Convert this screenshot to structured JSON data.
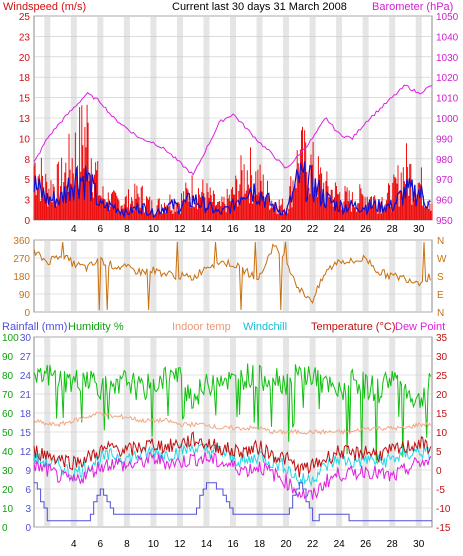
{
  "header": {
    "left": "Windspeed (m/s)",
    "center": "Current last 30 days 31 March 2008",
    "right": "Barometer (hPa)"
  },
  "legend": {
    "rainfall": "Rainfall (mm)",
    "humidity": "Humidity %",
    "indoor": "Indoor temp",
    "windchill": "Windchill",
    "temperature": "Temperature (°C)",
    "dewpoint": "Dew Point"
  },
  "colors": {
    "wind_avg": "#1010d0",
    "wind_gust": "#ee1010",
    "barometer": "#e020e0",
    "direction": "#c87010",
    "rainfall": "#5050d8",
    "humidity": "#10c010",
    "indoor": "#f0a888",
    "windchill": "#20d8e8",
    "temperature": "#c01010",
    "dewpoint": "#e020e0",
    "grid": "#c8c8c8",
    "daybar": "#d4d4d4"
  },
  "chart_data": [
    {
      "type": "line",
      "title": "Current last 30 days 31 March 2008",
      "xlabel": "",
      "x_ticks": [
        "4",
        "6",
        "8",
        "10",
        "12",
        "14",
        "16",
        "18",
        "20",
        "22",
        "24",
        "26",
        "28",
        "30"
      ],
      "xlim": [
        1,
        31
      ],
      "left_axis": {
        "label": "Windspeed (m/s)",
        "ticks": [
          "0",
          "3",
          "5",
          "8",
          "10",
          "13",
          "15",
          "18",
          "20",
          "23",
          "25"
        ],
        "ylim": [
          0,
          25
        ]
      },
      "right_axis": {
        "label": "Barometer (hPa)",
        "ticks": [
          "950",
          "960",
          "970",
          "980",
          "990",
          "1000",
          "1010",
          "1020",
          "1030",
          "1040",
          "1050"
        ],
        "ylim": [
          950,
          1050
        ]
      },
      "series": [
        {
          "name": "Barometer (hPa)",
          "axis": "right",
          "x": [
            1,
            2,
            3,
            4,
            5,
            6,
            7,
            8,
            9,
            10,
            11,
            12,
            13,
            14,
            15,
            16,
            17,
            18,
            19,
            20,
            21,
            22,
            23,
            24,
            25,
            26,
            27,
            28,
            29,
            30,
            31
          ],
          "values": [
            978,
            990,
            998,
            1005,
            1012,
            1008,
            1000,
            995,
            990,
            988,
            984,
            978,
            972,
            985,
            998,
            1002,
            995,
            988,
            982,
            975,
            982,
            990,
            1000,
            992,
            990,
            998,
            1004,
            1010,
            1016,
            1012,
            1016
          ]
        },
        {
          "name": "Windspeed gust (m/s)",
          "axis": "left",
          "x": [
            1,
            2,
            3,
            4,
            5,
            6,
            7,
            8,
            9,
            10,
            11,
            12,
            13,
            14,
            15,
            16,
            17,
            18,
            19,
            20,
            21,
            22,
            23,
            24,
            25,
            26,
            27,
            28,
            29,
            30,
            31
          ],
          "values": [
            9,
            5,
            6,
            10,
            14,
            4,
            3,
            3,
            4,
            2,
            3,
            3,
            5,
            4,
            2,
            4,
            8,
            6,
            3,
            2,
            10,
            8,
            5,
            4,
            3,
            4,
            3,
            4,
            8,
            6,
            3
          ]
        },
        {
          "name": "Windspeed average (m/s)",
          "axis": "left",
          "x": [
            1,
            2,
            3,
            4,
            5,
            6,
            7,
            8,
            9,
            10,
            11,
            12,
            13,
            14,
            15,
            16,
            17,
            18,
            19,
            20,
            21,
            22,
            23,
            24,
            25,
            26,
            27,
            28,
            29,
            30,
            31
          ],
          "values": [
            5,
            3,
            3,
            6,
            6,
            2,
            2,
            1,
            2,
            1,
            2,
            2,
            3,
            2,
            1,
            2,
            5,
            4,
            2,
            1,
            6,
            5,
            3,
            2,
            2,
            2,
            2,
            2,
            4,
            4,
            2
          ]
        }
      ]
    },
    {
      "type": "line",
      "xlim": [
        1,
        31
      ],
      "left_axis": {
        "ticks": [
          "0",
          "90",
          "180",
          "270",
          "360"
        ],
        "ylim": [
          0,
          360
        ]
      },
      "right_axis": {
        "ticks": [
          "N",
          "E",
          "S",
          "W",
          "N"
        ]
      },
      "series": [
        {
          "name": "Wind direction (°)",
          "x": [
            1,
            2,
            3,
            4,
            5,
            6,
            7,
            8,
            9,
            10,
            11,
            12,
            13,
            14,
            15,
            16,
            17,
            18,
            19,
            20,
            21,
            22,
            23,
            24,
            25,
            26,
            27,
            28,
            29,
            30,
            31
          ],
          "values": [
            300,
            250,
            290,
            240,
            220,
            260,
            230,
            220,
            200,
            210,
            190,
            180,
            170,
            230,
            250,
            240,
            200,
            170,
            330,
            260,
            110,
            60,
            200,
            260,
            250,
            270,
            200,
            180,
            170,
            150,
            180
          ]
        }
      ]
    },
    {
      "type": "line",
      "xlim": [
        1,
        31
      ],
      "left_axes": [
        {
          "label": "Rainfall (mm)",
          "ticks": [
            "0",
            "3",
            "6",
            "9",
            "12",
            "15",
            "18",
            "21",
            "24",
            "27",
            "30"
          ],
          "ylim": [
            0,
            30
          ]
        },
        {
          "label": "Humidity %",
          "ticks": [
            "0",
            "10",
            "20",
            "30",
            "40",
            "50",
            "60",
            "70",
            "80",
            "90",
            "100"
          ],
          "ylim": [
            0,
            100
          ]
        }
      ],
      "right_axis": {
        "label": "Temperature (°C)",
        "ticks": [
          "-15",
          "-10",
          "-5",
          "0",
          "5",
          "10",
          "15",
          "20",
          "25",
          "30",
          "35"
        ],
        "ylim": [
          -15,
          35
        ]
      },
      "series": [
        {
          "name": "Humidity %",
          "axis": "humidity",
          "x": [
            1,
            2,
            3,
            4,
            5,
            6,
            7,
            8,
            9,
            10,
            11,
            12,
            13,
            14,
            15,
            16,
            17,
            18,
            19,
            20,
            21,
            22,
            23,
            24,
            25,
            26,
            27,
            28,
            29,
            30,
            31
          ],
          "values": [
            75,
            80,
            78,
            76,
            80,
            74,
            70,
            78,
            72,
            75,
            80,
            78,
            68,
            74,
            80,
            76,
            80,
            78,
            80,
            76,
            80,
            80,
            74,
            70,
            78,
            74,
            72,
            80,
            72,
            66,
            76
          ]
        },
        {
          "name": "Indoor temp",
          "axis": "temp",
          "x": [
            1,
            2,
            3,
            4,
            5,
            6,
            7,
            8,
            9,
            10,
            11,
            12,
            13,
            14,
            15,
            16,
            17,
            18,
            19,
            20,
            21,
            22,
            23,
            24,
            25,
            26,
            27,
            28,
            29,
            30,
            31
          ],
          "values": [
            13,
            12,
            12,
            13,
            14,
            15,
            14,
            14,
            13,
            13,
            13,
            12,
            12,
            12,
            11,
            11,
            11,
            11,
            10,
            10,
            10,
            10,
            10,
            10,
            10,
            11,
            11,
            11,
            11,
            12,
            12
          ]
        },
        {
          "name": "Temperature (°C)",
          "axis": "temp",
          "x": [
            1,
            2,
            3,
            4,
            5,
            6,
            7,
            8,
            9,
            10,
            11,
            12,
            13,
            14,
            15,
            16,
            17,
            18,
            19,
            20,
            21,
            22,
            23,
            24,
            25,
            26,
            27,
            28,
            29,
            30,
            31
          ],
          "values": [
            5,
            4,
            3,
            2,
            3,
            5,
            6,
            5,
            6,
            7,
            6,
            7,
            8,
            7,
            6,
            5,
            5,
            6,
            4,
            3,
            0,
            1,
            3,
            5,
            4,
            5,
            4,
            5,
            6,
            7,
            6
          ]
        },
        {
          "name": "Windchill",
          "axis": "temp",
          "x": [
            1,
            2,
            3,
            4,
            5,
            6,
            7,
            8,
            9,
            10,
            11,
            12,
            13,
            14,
            15,
            16,
            17,
            18,
            19,
            20,
            21,
            22,
            23,
            24,
            25,
            26,
            27,
            28,
            29,
            30,
            31
          ],
          "values": [
            3,
            2,
            1,
            -1,
            1,
            3,
            4,
            3,
            4,
            5,
            4,
            5,
            6,
            5,
            5,
            3,
            2,
            4,
            2,
            1,
            -3,
            -2,
            1,
            3,
            2,
            3,
            2,
            3,
            4,
            5,
            4
          ]
        },
        {
          "name": "Dew Point",
          "axis": "temp",
          "x": [
            1,
            2,
            3,
            4,
            5,
            6,
            7,
            8,
            9,
            10,
            11,
            12,
            13,
            14,
            15,
            16,
            17,
            18,
            19,
            20,
            21,
            22,
            23,
            24,
            25,
            26,
            27,
            28,
            29,
            30,
            31
          ],
          "values": [
            1,
            0,
            -2,
            -3,
            -1,
            1,
            2,
            1,
            2,
            3,
            2,
            2,
            3,
            3,
            2,
            1,
            0,
            1,
            -1,
            -3,
            -6,
            -7,
            -3,
            -1,
            -1,
            0,
            -1,
            -2,
            0,
            2,
            2
          ]
        },
        {
          "name": "Rainfall (mm)",
          "axis": "rain",
          "x": [
            1,
            2,
            3,
            4,
            5,
            6,
            7,
            8,
            9,
            10,
            11,
            12,
            13,
            14,
            15,
            16,
            17,
            18,
            19,
            20,
            21,
            22,
            23,
            24,
            25,
            26,
            27,
            28,
            29,
            30,
            31
          ],
          "values": [
            7,
            1,
            1,
            1,
            1,
            6,
            2,
            2,
            2,
            2,
            2,
            2,
            2,
            7,
            6,
            2,
            2,
            2,
            2,
            2,
            7,
            1,
            2,
            2,
            1,
            1,
            1,
            1,
            1,
            1,
            1
          ]
        }
      ]
    }
  ]
}
